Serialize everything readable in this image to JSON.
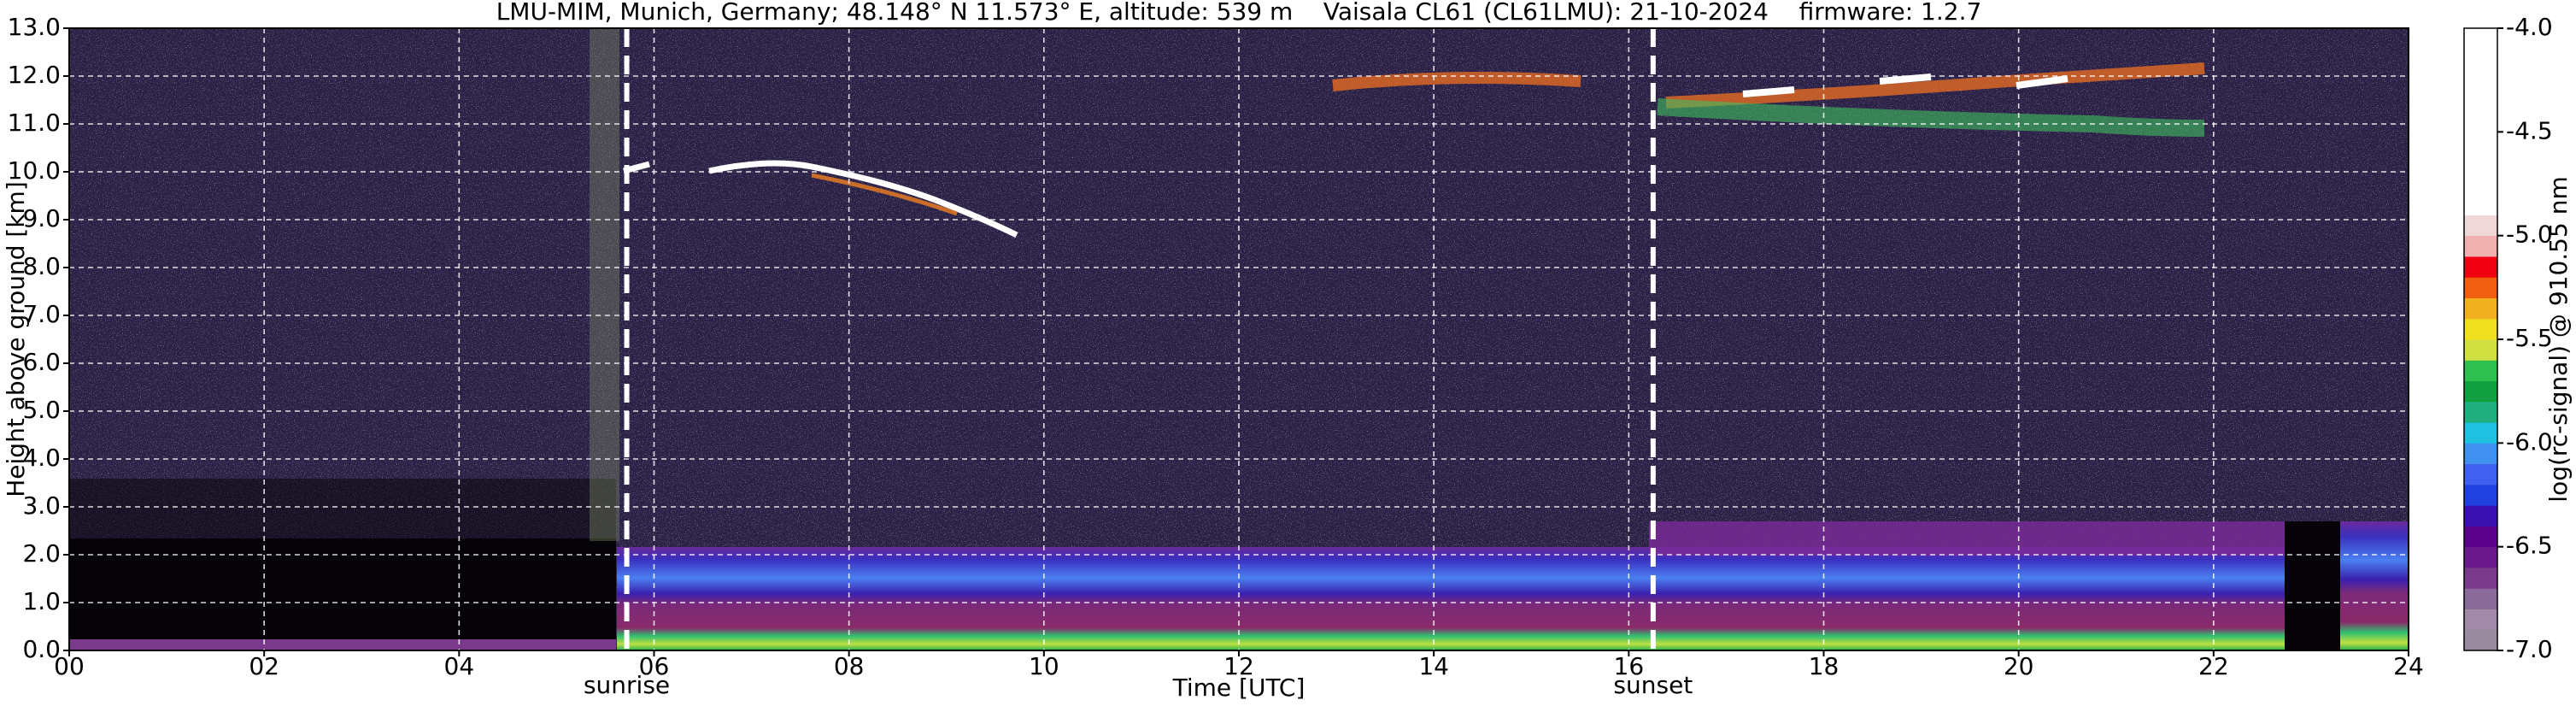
{
  "chart_data": {
    "type": "heatmap",
    "title": "LMU-MIM, Munich, Germany; 48.148° N 11.573° E, altitude: 539 m    Vaisala CL61 (CL61LMU): 21-10-2024    firmware: 1.2.7",
    "x_label": "Time [UTC]",
    "y_label": "Height above ground [km]",
    "xlim": [
      0,
      24
    ],
    "xticks": [
      {
        "value": 0,
        "label": "00"
      },
      {
        "value": 2,
        "label": "02"
      },
      {
        "value": 4,
        "label": "04"
      },
      {
        "value": 6,
        "label": "06"
      },
      {
        "value": 8,
        "label": "08"
      },
      {
        "value": 10,
        "label": "10"
      },
      {
        "value": 12,
        "label": "12"
      },
      {
        "value": 14,
        "label": "14"
      },
      {
        "value": 16,
        "label": "16"
      },
      {
        "value": 18,
        "label": "18"
      },
      {
        "value": 20,
        "label": "20"
      },
      {
        "value": 22,
        "label": "22"
      },
      {
        "value": 24,
        "label": "24"
      }
    ],
    "ylim": [
      0,
      13
    ],
    "yticks": [
      {
        "value": 0,
        "label": "0.0"
      },
      {
        "value": 1,
        "label": "1.0"
      },
      {
        "value": 2,
        "label": "2.0"
      },
      {
        "value": 3,
        "label": "3.0"
      },
      {
        "value": 4,
        "label": "4.0"
      },
      {
        "value": 5,
        "label": "5.0"
      },
      {
        "value": 6,
        "label": "6.0"
      },
      {
        "value": 7,
        "label": "7.0"
      },
      {
        "value": 8,
        "label": "8.0"
      },
      {
        "value": 9,
        "label": "9.0"
      },
      {
        "value": 10,
        "label": "10.0"
      },
      {
        "value": 11,
        "label": "11.0"
      },
      {
        "value": 12,
        "label": "12.0"
      },
      {
        "value": 13,
        "label": "13.0"
      }
    ],
    "grid": true,
    "annotations": [
      {
        "label": "sunrise",
        "x": 5.72
      },
      {
        "label": "sunset",
        "x": 16.25
      }
    ],
    "colorbar": {
      "label": "log(rc-signal) @ 910.55 nm",
      "lim": [
        -7,
        -4
      ],
      "ticks": [
        {
          "value": -4,
          "label": "-4.0"
        },
        {
          "value": -4.5,
          "label": "-4.5"
        },
        {
          "value": -5,
          "label": "-5.0"
        },
        {
          "value": -5.5,
          "label": "-5.5"
        },
        {
          "value": -6,
          "label": "-6.0"
        },
        {
          "value": -6.5,
          "label": "-6.5"
        },
        {
          "value": -7,
          "label": "-7.0"
        }
      ],
      "colors": [
        "#9a8aa0",
        "#a08aa8",
        "#8a6a98",
        "#7a3a8a",
        "#6a1a8a",
        "#5a008a",
        "#3a10b0",
        "#2040e0",
        "#4060f0",
        "#4090f0",
        "#20c0e0",
        "#20b080",
        "#10a040",
        "#30c050",
        "#d0e040",
        "#f0e020",
        "#f0b020",
        "#f06010",
        "#f00010",
        "#f0b0b0",
        "#f0d8d8",
        "#ffffff",
        "#ffffff",
        "#ffffff",
        "#ffffff",
        "#ffffff",
        "#ffffff",
        "#ffffff",
        "#ffffff",
        "#ffffff"
      ]
    }
  }
}
